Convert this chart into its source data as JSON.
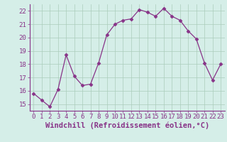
{
  "x": [
    0,
    1,
    2,
    3,
    4,
    5,
    6,
    7,
    8,
    9,
    10,
    11,
    12,
    13,
    14,
    15,
    16,
    17,
    18,
    19,
    20,
    21,
    22,
    23
  ],
  "y": [
    15.8,
    15.3,
    14.8,
    16.1,
    18.7,
    17.1,
    16.4,
    16.5,
    18.1,
    20.2,
    21.0,
    21.3,
    21.4,
    22.1,
    21.9,
    21.6,
    22.2,
    21.6,
    21.3,
    20.5,
    19.9,
    18.1,
    16.8,
    18.0
  ],
  "line_color": "#883388",
  "marker": "D",
  "marker_size": 2.5,
  "xlabel": "Windchill (Refroidissement éolien,°C)",
  "xlim": [
    -0.5,
    23.5
  ],
  "ylim": [
    14.5,
    22.5
  ],
  "yticks": [
    15,
    16,
    17,
    18,
    19,
    20,
    21,
    22
  ],
  "xticks": [
    0,
    1,
    2,
    3,
    4,
    5,
    6,
    7,
    8,
    9,
    10,
    11,
    12,
    13,
    14,
    15,
    16,
    17,
    18,
    19,
    20,
    21,
    22,
    23
  ],
  "bg_color": "#d5eee8",
  "grid_color": "#aaccbb",
  "tick_color": "#883388",
  "label_color": "#883388",
  "xlabel_fontsize": 7.5,
  "tick_fontsize": 6.5,
  "spine_color": "#883388"
}
